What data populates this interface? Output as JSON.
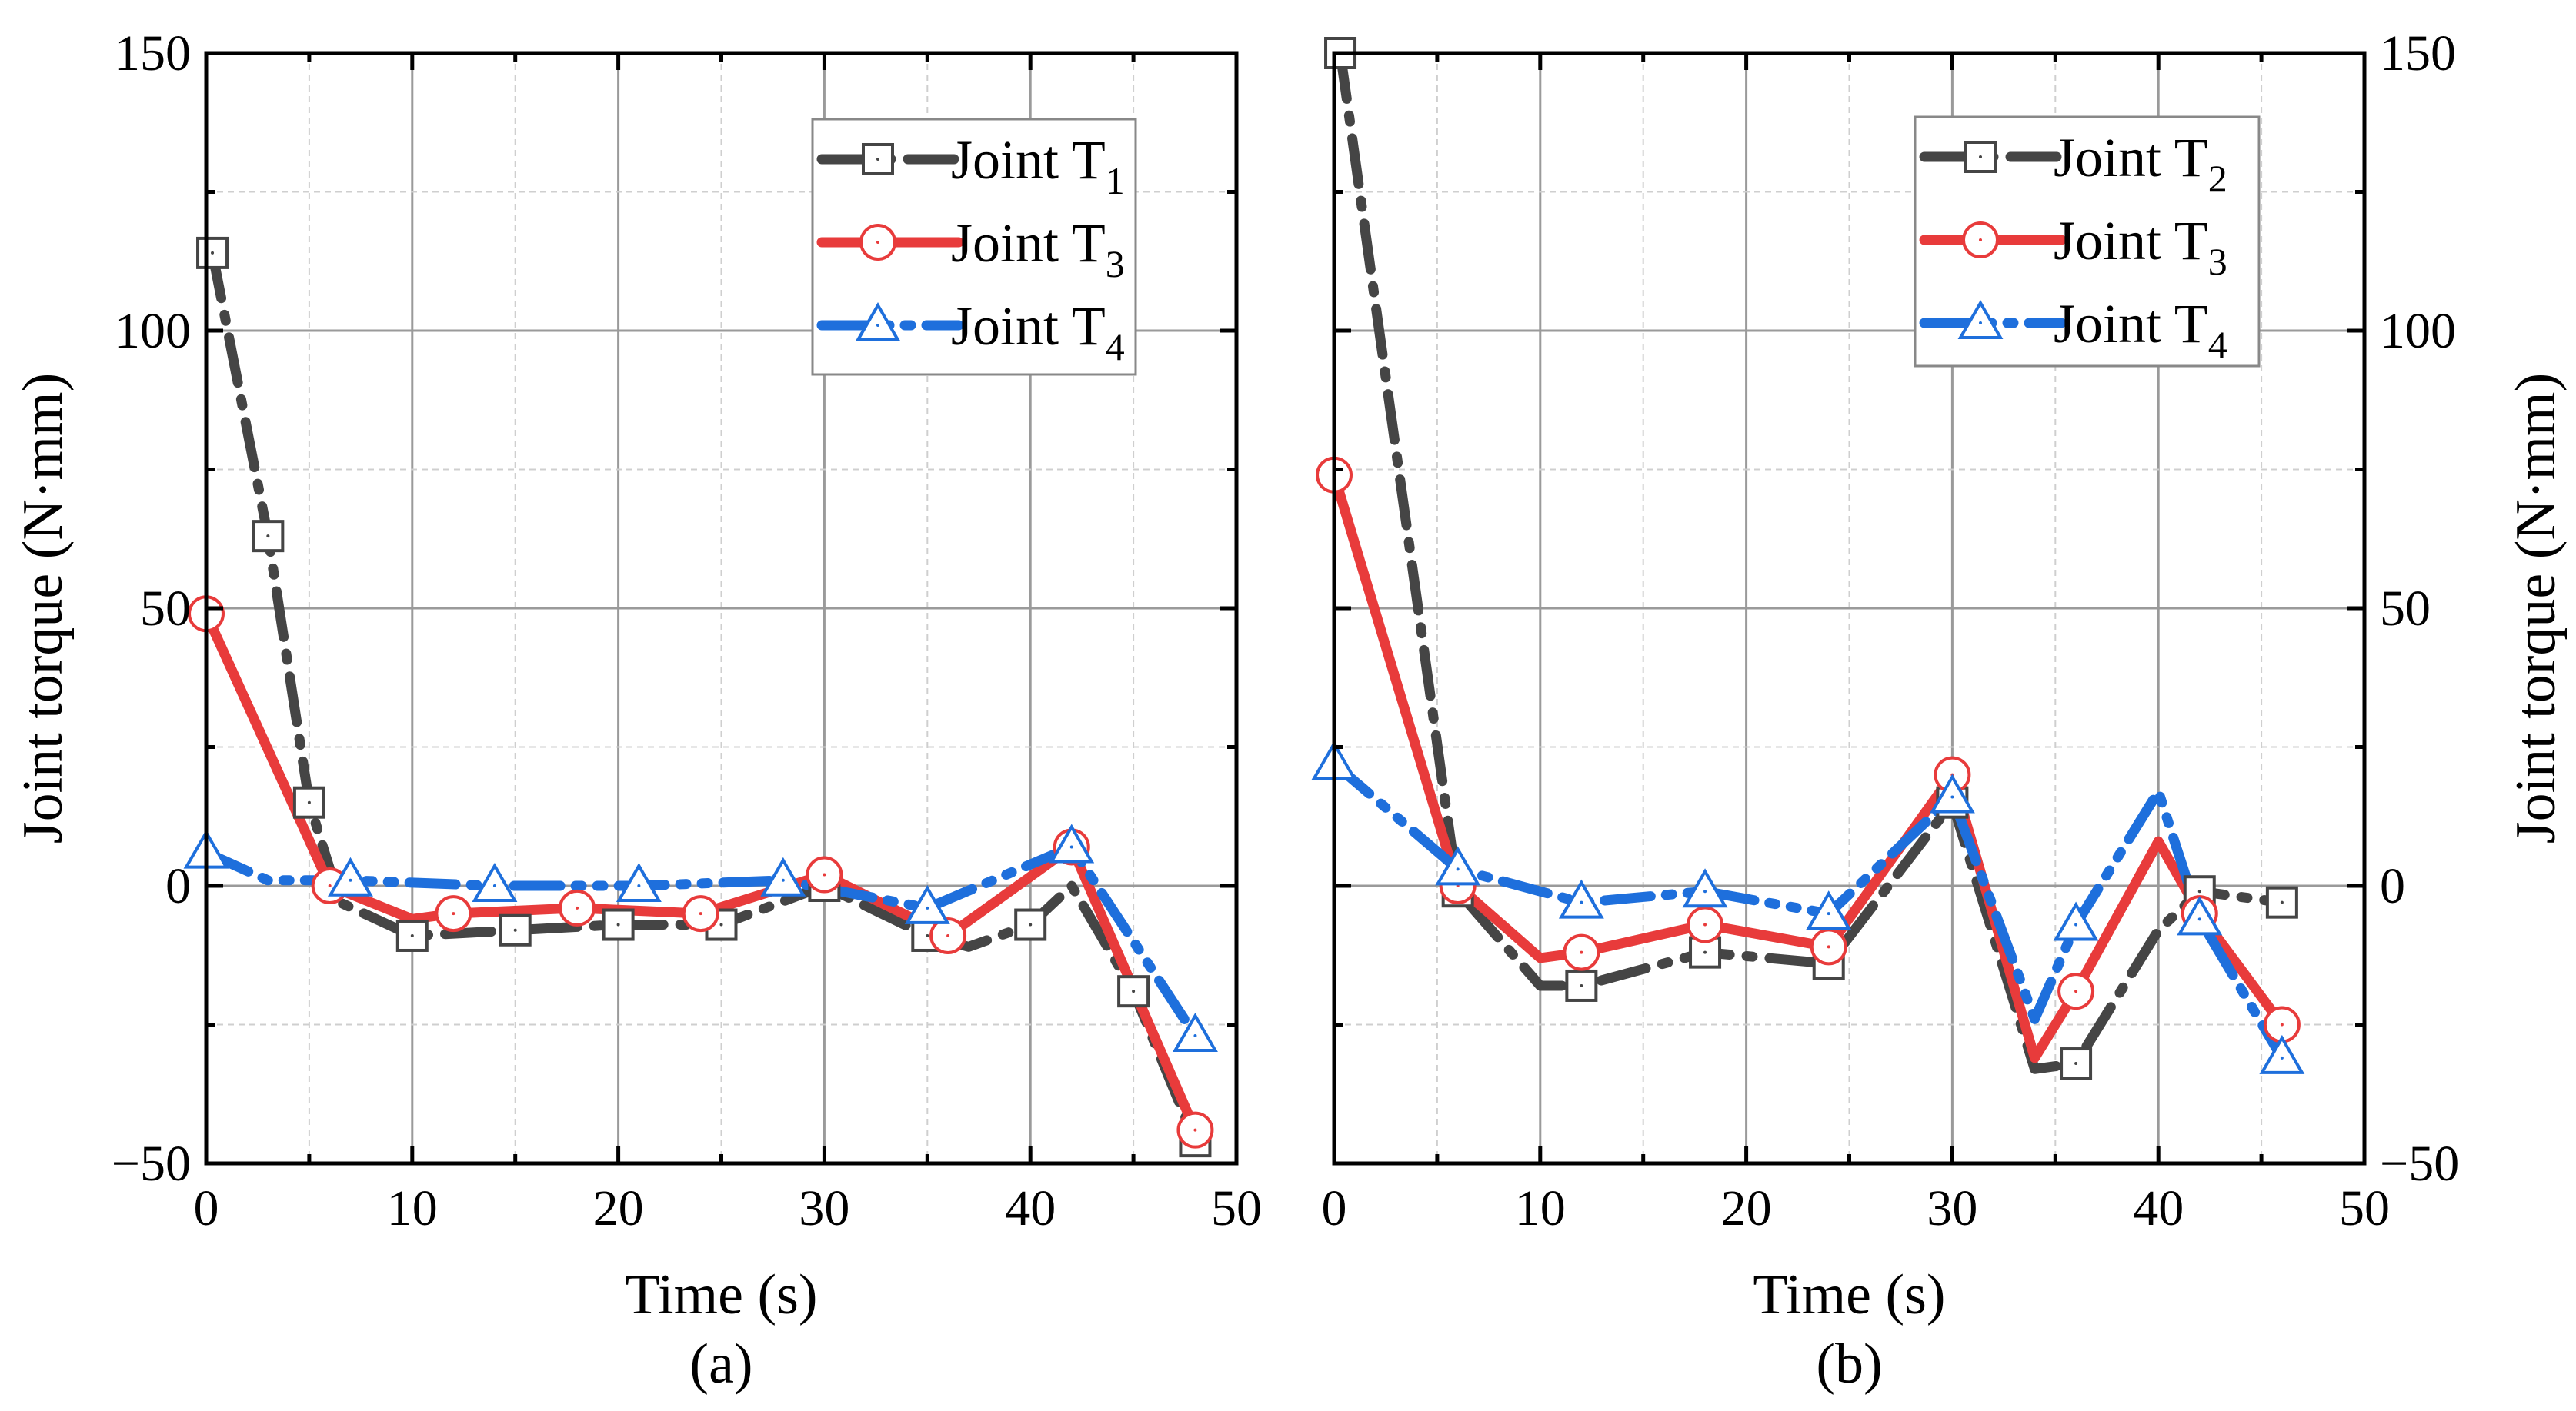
{
  "colors": {
    "T1": "#454545",
    "T2": "#454545",
    "T3": "#e83b3b",
    "T4": "#1e6fdc"
  },
  "chart_data": [
    {
      "type": "line",
      "panel_label": "(a)",
      "xlabel": "Time (s)",
      "ylabel": "Joint torque (N·mm)",
      "xlim": [
        0,
        50
      ],
      "ylim": [
        -50,
        150
      ],
      "xticks": [
        "0",
        "10",
        "20",
        "30",
        "40",
        "50"
      ],
      "yticks": [
        "−50",
        "0",
        "50",
        "100",
        "150"
      ],
      "ytick_side": "left",
      "legend_position": "top-right",
      "series": [
        {
          "key": "T1",
          "name": "Joint T",
          "sub": "1",
          "style": "dashdot",
          "marker": "square",
          "points": [
            [
              0.3,
              114,
              1
            ],
            [
              3,
              63,
              1
            ],
            [
              5,
              15,
              1
            ],
            [
              6.5,
              -3,
              0
            ],
            [
              10,
              -9,
              1
            ],
            [
              15,
              -8,
              1
            ],
            [
              20,
              -7,
              1
            ],
            [
              25,
              -7,
              1
            ],
            [
              30,
              0,
              1
            ],
            [
              35,
              -9,
              1
            ],
            [
              37,
              -11,
              0
            ],
            [
              40,
              -7,
              1
            ],
            [
              42,
              0,
              0
            ],
            [
              45,
              -19,
              1
            ],
            [
              48,
              -46,
              1
            ]
          ]
        },
        {
          "key": "T3",
          "name": "Joint T",
          "sub": "3",
          "style": "solid",
          "marker": "circle",
          "points": [
            [
              0,
              49,
              1
            ],
            [
              6,
              0,
              1
            ],
            [
              10,
              -6,
              0
            ],
            [
              12,
              -5,
              1
            ],
            [
              18,
              -4,
              1
            ],
            [
              24,
              -5,
              1
            ],
            [
              30,
              2,
              1
            ],
            [
              36,
              -9,
              1
            ],
            [
              42,
              7,
              1
            ],
            [
              48,
              -44,
              1
            ]
          ]
        },
        {
          "key": "T4",
          "name": "Joint T",
          "sub": "4",
          "style": "dashdotdot",
          "marker": "triangle",
          "points": [
            [
              0,
              6,
              1
            ],
            [
              3,
              1,
              0
            ],
            [
              7,
              1,
              1
            ],
            [
              14,
              0,
              1
            ],
            [
              21,
              0,
              1
            ],
            [
              28,
              1,
              1
            ],
            [
              35,
              -4,
              1
            ],
            [
              42,
              7,
              1
            ],
            [
              48,
              -27,
              1
            ]
          ]
        }
      ]
    },
    {
      "type": "line",
      "panel_label": "(b)",
      "xlabel": "Time (s)",
      "ylabel": "Joint torque (N·mm)",
      "xlim": [
        0,
        50
      ],
      "ylim": [
        -50,
        150
      ],
      "xticks": [
        "0",
        "10",
        "20",
        "30",
        "40",
        "50"
      ],
      "yticks": [
        "−50",
        "0",
        "50",
        "100",
        "150"
      ],
      "ytick_side": "right",
      "legend_position": "top-right",
      "series": [
        {
          "key": "T2",
          "name": "Joint T",
          "sub": "2",
          "style": "dashdot",
          "marker": "square",
          "points": [
            [
              0.3,
              150,
              1
            ],
            [
              6,
              -1,
              1
            ],
            [
              10,
              -18,
              0
            ],
            [
              12,
              -18,
              1
            ],
            [
              18,
              -12,
              1
            ],
            [
              24,
              -14,
              1
            ],
            [
              30,
              15,
              1
            ],
            [
              34,
              -33,
              0
            ],
            [
              36,
              -32,
              1
            ],
            [
              40,
              -8,
              0
            ],
            [
              42,
              -1,
              1
            ],
            [
              46,
              -3,
              1
            ]
          ]
        },
        {
          "key": "T3",
          "name": "Joint T",
          "sub": "3",
          "style": "solid",
          "marker": "circle",
          "points": [
            [
              0,
              74,
              1
            ],
            [
              6,
              0,
              1
            ],
            [
              10,
              -13,
              0
            ],
            [
              12,
              -12,
              1
            ],
            [
              18,
              -7,
              1
            ],
            [
              24,
              -11,
              1
            ],
            [
              30,
              20,
              1
            ],
            [
              34,
              -31,
              0
            ],
            [
              36,
              -19,
              1
            ],
            [
              40,
              8,
              0
            ],
            [
              42,
              -5,
              1
            ],
            [
              46,
              -25,
              1
            ]
          ]
        },
        {
          "key": "T4",
          "name": "Joint T",
          "sub": "4",
          "style": "dashdotdot",
          "marker": "triangle",
          "points": [
            [
              0,
              22,
              1
            ],
            [
              6,
              3,
              1
            ],
            [
              12,
              -3,
              1
            ],
            [
              18,
              -1,
              1
            ],
            [
              24,
              -5,
              1
            ],
            [
              30,
              16,
              1
            ],
            [
              34,
              -24,
              0
            ],
            [
              36,
              -7,
              1
            ],
            [
              40,
              17,
              0
            ],
            [
              42,
              -6,
              1
            ],
            [
              46,
              -31,
              1
            ]
          ]
        }
      ]
    }
  ]
}
